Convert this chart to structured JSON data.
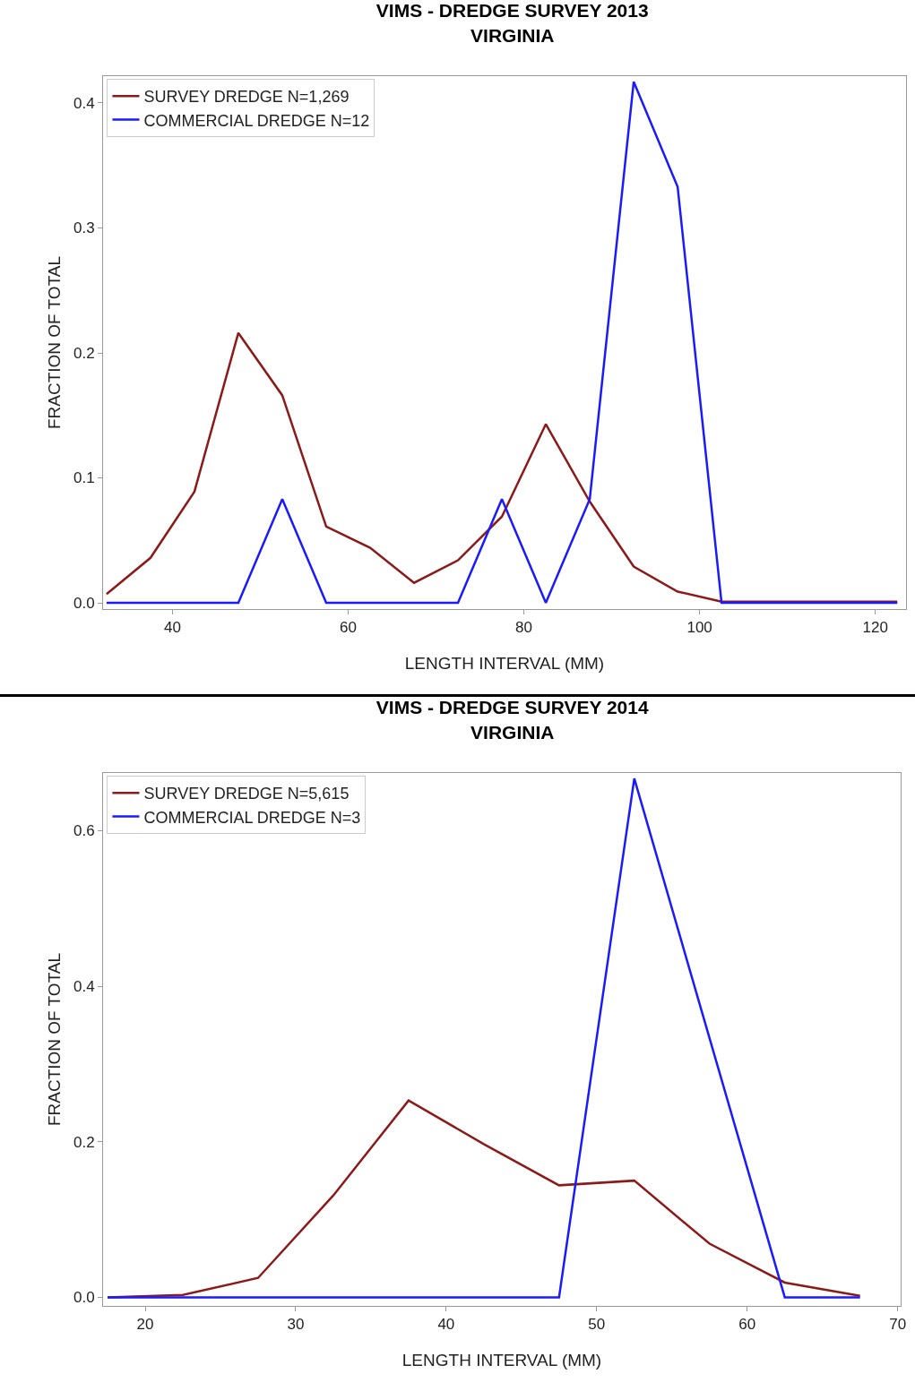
{
  "chart_data": [
    {
      "type": "line",
      "title": "VIMS - DREDGE SURVEY 2013",
      "subtitle": "VIRGINIA",
      "xlabel": "LENGTH INTERVAL (MM)",
      "ylabel": "FRACTION OF TOTAL",
      "x": [
        32.5,
        37.5,
        42.5,
        47.5,
        52.5,
        57.5,
        62.5,
        67.5,
        72.5,
        77.5,
        82.5,
        87.5,
        92.5,
        97.5,
        102.5,
        107.5,
        112.5,
        117.5,
        122.5
      ],
      "series": [
        {
          "name": "SURVEY DREDGE N=1,269",
          "color": "#8b1a1a",
          "values": [
            0.007,
            0.036,
            0.089,
            0.216,
            0.166,
            0.061,
            0.044,
            0.016,
            0.034,
            0.069,
            0.143,
            0.081,
            0.029,
            0.009,
            0.001,
            0.001,
            0.001,
            0.001,
            0.001
          ]
        },
        {
          "name": "COMMERCIAL DREDGE N=12",
          "color": "#1a1aff",
          "values": [
            0,
            0,
            0,
            0,
            0.083,
            0,
            0,
            0,
            0,
            0.083,
            0,
            0.083,
            0.417,
            0.333,
            0,
            0,
            0,
            0,
            0
          ]
        }
      ],
      "xlim": [
        32.1,
        123.5
      ],
      "xticks": [
        40,
        60,
        80,
        100,
        120
      ],
      "ylim": [
        -0.005,
        0.4215
      ],
      "yticks": [
        {
          "value": 0,
          "label": "0.0"
        },
        {
          "value": 0.1,
          "label": "0.1"
        },
        {
          "value": 0.2,
          "label": "0.2"
        },
        {
          "value": 0.3,
          "label": "0.3"
        },
        {
          "value": 0.4,
          "label": "0.4"
        }
      ],
      "legend": "top left",
      "grid": false,
      "marker": "none",
      "line_style": "solid"
    },
    {
      "type": "line",
      "title": "VIMS - DREDGE SURVEY 2014",
      "subtitle": "VIRGINIA",
      "xlabel": "LENGTH INTERVAL (MM)",
      "ylabel": "FRACTION OF TOTAL",
      "x": [
        17.5,
        22.5,
        27.5,
        32.5,
        37.5,
        42.5,
        47.5,
        52.5,
        57.5,
        62.5,
        67.5
      ],
      "series": [
        {
          "name": "SURVEY DREDGE N=5,615",
          "color": "#8b1a1a",
          "values": [
            0,
            0.003,
            0.025,
            0.131,
            0.253,
            0.197,
            0.144,
            0.15,
            0.069,
            0.019,
            0.002
          ]
        },
        {
          "name": "COMMERCIAL DREDGE N=3",
          "color": "#1a1aff",
          "values": [
            0,
            0,
            0,
            0,
            0,
            0,
            0,
            0.667,
            0.333,
            0,
            0
          ]
        }
      ],
      "xlim": [
        17.2,
        70.2
      ],
      "xticks": [
        20,
        30,
        40,
        50,
        60,
        70
      ],
      "ylim": [
        -0.011,
        0.674
      ],
      "yticks": [
        {
          "value": 0,
          "label": "0.0"
        },
        {
          "value": 0.2,
          "label": "0.2"
        },
        {
          "value": 0.4,
          "label": "0.4"
        },
        {
          "value": 0.6,
          "label": "0.6"
        }
      ],
      "legend": "top left",
      "grid": false,
      "marker": "none",
      "line_style": "solid"
    }
  ]
}
